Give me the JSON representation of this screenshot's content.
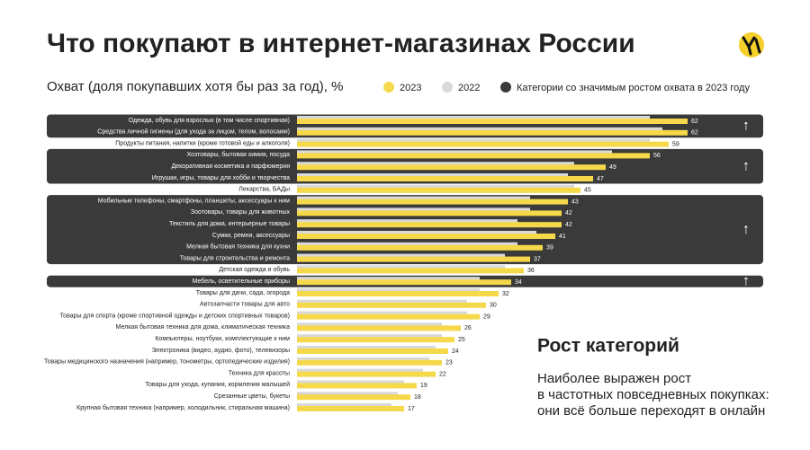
{
  "chart_data": {
    "type": "bar",
    "orientation": "horizontal",
    "title": "Что покупают в интернет-магазинах России",
    "subtitle": "Охват (доля покупавших хотя бы раз за год), %",
    "categories": [
      "Одежда, обувь для взрослых (в том числе спортивная)",
      "Средства личной гигиены (для ухода за лицом, телом, волосами)",
      "Продукты питания, напитки (кроме готовой еды и алкоголя)",
      "Хозтовары, бытовая химия, посуда",
      "Декоративная косметика и парфюмерия",
      "Игрушки, игры, товары для хобби и творчества",
      "Лекарства, БАДы",
      "Мобильные телефоны, смартфоны, планшеты, аксессуары к ним",
      "Зоотовары, товары для животных",
      "Текстиль для дома, интерьерные товары",
      "Сумки, ремни, аксессуары",
      "Мелкая бытовая техника для кухни",
      "Товары для строительства и ремонта",
      "Детская одежда и обувь",
      "Мебель, осветительные приборы",
      "Товары для дачи, сада, огорода",
      "Автозапчасти товары для авто",
      "Товары для спорта (кроме спортивной одежды и детских спортивных товаров)",
      "Мелкая бытовая техника для дома, климатическая техника",
      "Компьютеры, ноутбуки, комплектующие к ним",
      "Электроника (видео, аудио, фото), телевизоры",
      "Товары медицинского назначения (например, тонометры, ортопедические изделия)",
      "Техника для красоты",
      "Товары для ухода, купания, кормления малышей",
      "Срезанные цветы, букеты",
      "Крупная бытовая техника (например, холодильник, стиральная машина)"
    ],
    "series": [
      {
        "name": "2022",
        "color": "#d9d9d9",
        "values": [
          56,
          58,
          56,
          50,
          44,
          43,
          44,
          37,
          37,
          35,
          38,
          35,
          33,
          33,
          29,
          29,
          27,
          27,
          23,
          23,
          22,
          21,
          20,
          17,
          16,
          15
        ]
      },
      {
        "name": "2023",
        "color": "#f5d94a",
        "values": [
          62,
          62,
          59,
          56,
          49,
          47,
          45,
          43,
          42,
          42,
          41,
          39,
          37,
          36,
          34,
          32,
          30,
          29,
          26,
          25,
          24,
          23,
          22,
          19,
          18,
          17
        ]
      }
    ],
    "highlight": {
      "name": "Категории со значимым ростом охвата в 2023 году",
      "color": "#3a3a3a",
      "marker": "↑",
      "groups": [
        [
          0,
          1
        ],
        [
          3,
          5
        ],
        [
          7,
          12
        ],
        [
          14,
          14
        ]
      ]
    },
    "xlim": [
      0,
      80
    ],
    "annotation": {
      "title": "Рост категорий",
      "lines": [
        "Наиболее выражен рост",
        "в частотных повседневных покупках:",
        "они всё больше переходят в онлайн"
      ]
    }
  }
}
